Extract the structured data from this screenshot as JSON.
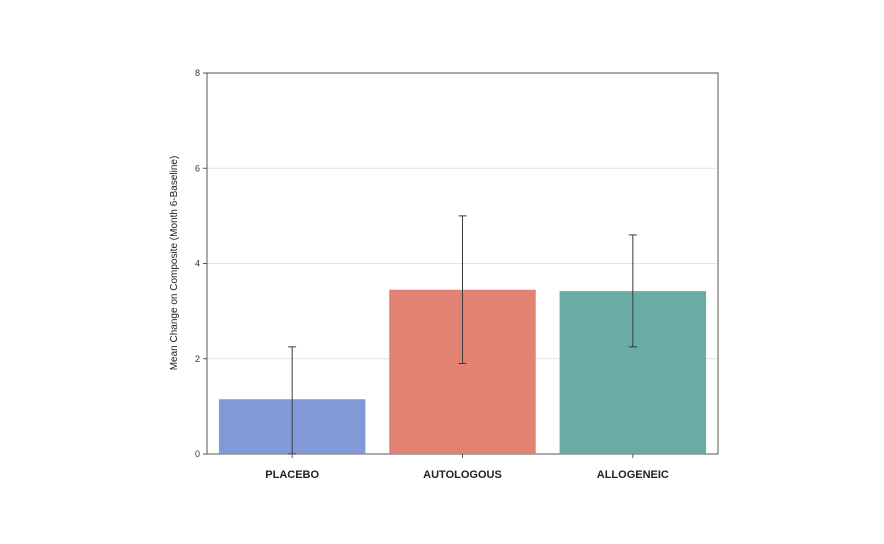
{
  "chart_data": {
    "type": "bar",
    "title": "",
    "xlabel": "",
    "ylabel": "Mean Change on Composite (Month 6-Baseline)",
    "ylim": [
      0,
      8
    ],
    "yticks": [
      0,
      2,
      4,
      6,
      8
    ],
    "categories": [
      "PLACEBO",
      "AUTOLOGOUS",
      "ALLOGENEIC"
    ],
    "values": [
      1.15,
      3.45,
      3.42
    ],
    "error_low": [
      0.0,
      1.9,
      2.25
    ],
    "error_high": [
      2.25,
      5.0,
      4.6
    ],
    "colors": [
      "#7b93d6",
      "#e07b6b",
      "#62a8a0"
    ],
    "grid": "horizontal",
    "legend": "none"
  }
}
